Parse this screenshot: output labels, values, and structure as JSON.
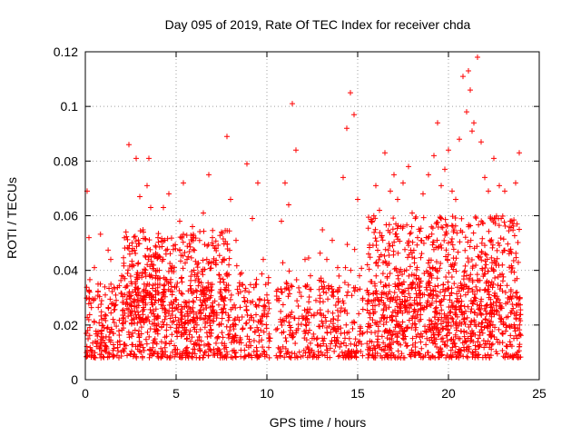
{
  "chart_data": {
    "type": "scatter",
    "title": "Day 095 of 2019, Rate Of TEC Index for receiver chda",
    "xlabel": "GPS time / hours",
    "ylabel": "ROTI / TECUs",
    "xlim": [
      0,
      25
    ],
    "ylim": [
      0,
      0.12
    ],
    "x_ticks": [
      0,
      5,
      10,
      15,
      20,
      25
    ],
    "x_tick_labels": [
      "0",
      "5",
      "10",
      "15",
      "20",
      "25"
    ],
    "y_ticks": [
      0,
      0.02,
      0.04,
      0.06,
      0.08,
      0.1,
      0.12
    ],
    "y_tick_labels": [
      "0",
      "0.02",
      "0.04",
      "0.06",
      "0.08",
      "0.1",
      "0.12"
    ],
    "grid": true,
    "marker": "+",
    "color": "#ff0000",
    "series": [
      {
        "name": "ROTI",
        "x": [
          0.1,
          0.2,
          0.3,
          0.5,
          0.7,
          0.9,
          1.1,
          1.4,
          1.7,
          2.0,
          2.3,
          2.4,
          2.6,
          2.8,
          3.0,
          3.2,
          3.4,
          3.5,
          3.6,
          3.8,
          4.0,
          4.3,
          4.6,
          4.9,
          5.2,
          5.4,
          5.6,
          5.9,
          6.2,
          6.5,
          6.8,
          7.0,
          7.2,
          7.5,
          7.8,
          8.0,
          8.3,
          8.6,
          8.9,
          9.2,
          9.5,
          9.8,
          10.0,
          10.1,
          10.6,
          10.8,
          11.0,
          11.2,
          11.4,
          11.6,
          11.8,
          12.1,
          12.4,
          12.7,
          13.0,
          13.3,
          13.6,
          13.9,
          14.2,
          14.4,
          14.6,
          14.8,
          15.0,
          15.1,
          15.6,
          15.8,
          16.0,
          16.2,
          16.5,
          16.8,
          17.0,
          17.2,
          17.5,
          17.8,
          18.0,
          18.3,
          18.6,
          18.9,
          19.2,
          19.4,
          19.6,
          19.8,
          20.0,
          20.2,
          20.4,
          20.6,
          20.8,
          21.0,
          21.1,
          21.2,
          21.3,
          21.4,
          21.6,
          21.8,
          22.0,
          22.2,
          22.5,
          22.8,
          23.1,
          23.4,
          23.7,
          23.9
        ],
        "y": [
          0.069,
          0.052,
          0.028,
          0.041,
          0.035,
          0.022,
          0.031,
          0.044,
          0.029,
          0.038,
          0.026,
          0.086,
          0.048,
          0.081,
          0.067,
          0.054,
          0.071,
          0.081,
          0.063,
          0.045,
          0.052,
          0.063,
          0.068,
          0.041,
          0.058,
          0.072,
          0.044,
          0.056,
          0.039,
          0.061,
          0.075,
          0.052,
          0.048,
          0.054,
          0.089,
          0.066,
          0.051,
          0.039,
          0.079,
          0.059,
          0.072,
          0.044,
          0.031,
          0.028,
          0.033,
          0.058,
          0.072,
          0.064,
          0.101,
          0.084,
          0.032,
          0.044,
          0.038,
          0.029,
          0.036,
          0.044,
          0.051,
          0.041,
          0.074,
          0.092,
          0.105,
          0.097,
          0.066,
          0.038,
          0.046,
          0.058,
          0.071,
          0.062,
          0.083,
          0.069,
          0.075,
          0.066,
          0.072,
          0.078,
          0.061,
          0.052,
          0.068,
          0.075,
          0.082,
          0.094,
          0.071,
          0.077,
          0.084,
          0.069,
          0.066,
          0.088,
          0.111,
          0.098,
          0.113,
          0.106,
          0.091,
          0.094,
          0.118,
          0.087,
          0.074,
          0.069,
          0.081,
          0.071,
          0.069,
          0.058,
          0.072,
          0.083
        ],
        "baseline_band": [
          0.008,
          0.035
        ]
      }
    ]
  }
}
